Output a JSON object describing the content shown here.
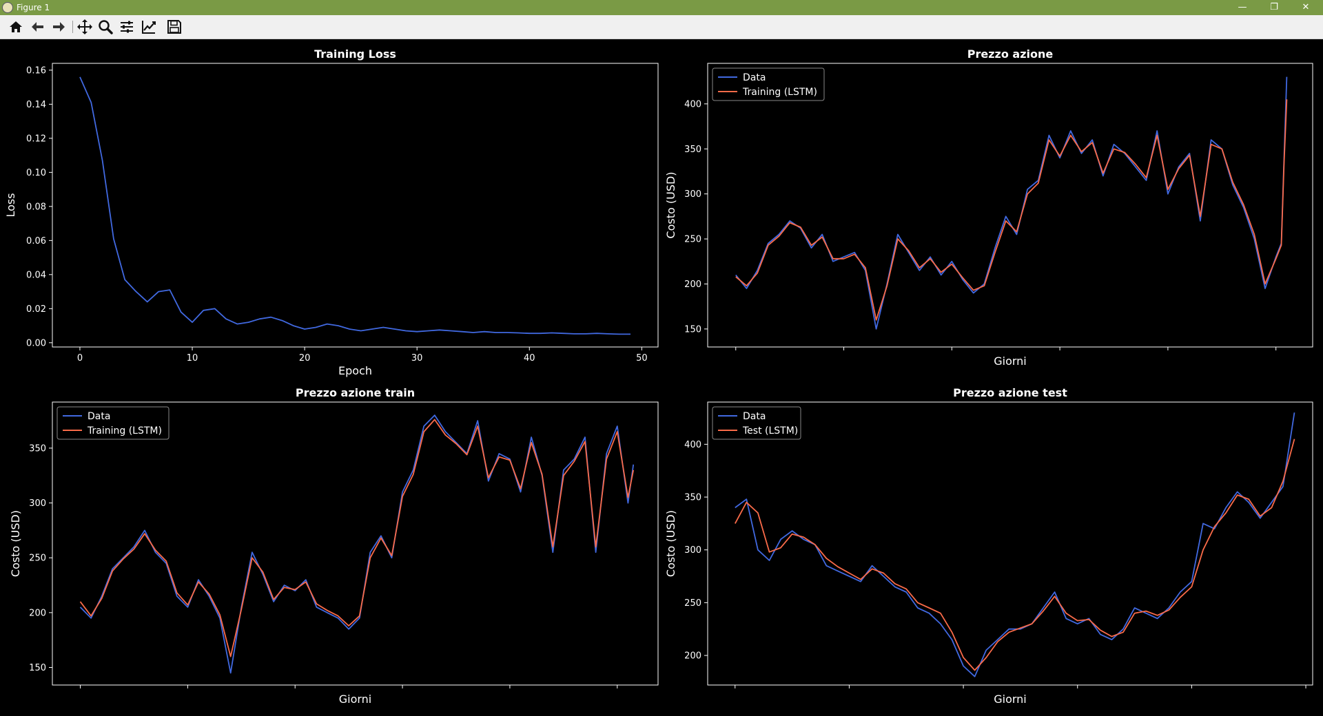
{
  "window": {
    "title": "Figure 1",
    "minimize": "—",
    "restore": "❐",
    "close": "✕"
  },
  "toolbar": {
    "icons": [
      "home-icon",
      "back-arrow-icon",
      "forward-arrow-icon",
      "pan-icon",
      "zoom-icon",
      "configure-subplots-icon",
      "edit-axes-icon",
      "save-icon"
    ]
  },
  "colors": {
    "background": "#000000",
    "data": "#4169e1",
    "model": "#fa6b49",
    "titlebar": "#7a9a45"
  },
  "chart_data": [
    {
      "type": "line",
      "title": "Training Loss",
      "xlabel": "Epoch",
      "ylabel": "Loss",
      "xlim": [
        -2.45,
        51.45
      ],
      "ylim": [
        -0.0025,
        0.164
      ],
      "xticks": [
        0,
        10,
        20,
        30,
        40,
        50
      ],
      "yticks": [
        0.0,
        0.02,
        0.04,
        0.06,
        0.08,
        0.1,
        0.12,
        0.14,
        0.16
      ],
      "ytick_labels": [
        "0.00",
        "0.02",
        "0.04",
        "0.06",
        "0.08",
        "0.10",
        "0.12",
        "0.14",
        "0.16"
      ],
      "series": [
        {
          "color": "#4169e1",
          "x": [
            0,
            1,
            2,
            3,
            4,
            5,
            6,
            7,
            8,
            9,
            10,
            11,
            12,
            13,
            14,
            15,
            16,
            17,
            18,
            19,
            20,
            21,
            22,
            23,
            24,
            25,
            26,
            27,
            28,
            29,
            30,
            31,
            32,
            33,
            34,
            35,
            36,
            37,
            38,
            39,
            40,
            41,
            42,
            43,
            44,
            45,
            46,
            47,
            48,
            49
          ],
          "y": [
            0.156,
            0.141,
            0.107,
            0.061,
            0.037,
            0.03,
            0.024,
            0.03,
            0.031,
            0.018,
            0.012,
            0.019,
            0.02,
            0.014,
            0.011,
            0.012,
            0.014,
            0.015,
            0.013,
            0.01,
            0.008,
            0.009,
            0.011,
            0.01,
            0.008,
            0.007,
            0.008,
            0.009,
            0.008,
            0.007,
            0.0065,
            0.007,
            0.0075,
            0.007,
            0.0065,
            0.006,
            0.0065,
            0.006,
            0.006,
            0.0058,
            0.0055,
            0.0055,
            0.0058,
            0.0055,
            0.0052,
            0.0052,
            0.0055,
            0.0052,
            0.005,
            0.005
          ]
        }
      ]
    },
    {
      "type": "line",
      "title": "Prezzo azione",
      "xlabel": "Giorni",
      "ylabel": "Costo (USD)",
      "xlim": [
        -52,
        1068
      ],
      "ylim": [
        130,
        445
      ],
      "xticks": [
        0,
        200,
        400,
        600,
        800,
        1000
      ],
      "yticks": [
        150,
        200,
        250,
        300,
        350,
        400
      ],
      "legend": {
        "position": "top-left",
        "entries": [
          "Data",
          "Training (LSTM)"
        ]
      },
      "x_days": [
        0,
        20,
        40,
        60,
        80,
        100,
        120,
        140,
        160,
        180,
        200,
        220,
        240,
        260,
        280,
        300,
        320,
        340,
        360,
        380,
        400,
        420,
        440,
        460,
        480,
        500,
        520,
        540,
        560,
        580,
        600,
        620,
        640,
        660,
        680,
        700,
        720,
        740,
        760,
        780,
        800,
        820,
        840,
        860,
        880,
        900,
        920,
        940,
        960,
        980,
        1000,
        1010,
        1015,
        1020
      ],
      "series": [
        {
          "name": "Data",
          "color": "#4169e1",
          "values": [
            210,
            195,
            215,
            245,
            255,
            270,
            262,
            240,
            255,
            225,
            230,
            235,
            215,
            150,
            200,
            255,
            235,
            215,
            230,
            210,
            225,
            205,
            190,
            200,
            240,
            275,
            255,
            305,
            315,
            365,
            340,
            370,
            345,
            360,
            320,
            355,
            345,
            330,
            315,
            370,
            300,
            330,
            345,
            270,
            360,
            350,
            310,
            285,
            250,
            195,
            230,
            245,
            340,
            430
          ]
        },
        {
          "name": "Training (LSTM)",
          "color": "#fa6b49",
          "values": [
            208,
            198,
            212,
            243,
            253,
            268,
            263,
            243,
            252,
            228,
            228,
            233,
            218,
            160,
            198,
            250,
            237,
            218,
            228,
            213,
            222,
            207,
            193,
            198,
            235,
            270,
            258,
            300,
            312,
            360,
            342,
            365,
            347,
            357,
            323,
            350,
            346,
            333,
            318,
            365,
            305,
            328,
            343,
            275,
            355,
            350,
            313,
            288,
            255,
            200,
            228,
            243,
            335,
            405
          ]
        }
      ]
    },
    {
      "type": "line",
      "title": "Prezzo azione train",
      "xlabel": "Giorni",
      "ylabel": "Costo (USD)",
      "xlim": [
        -26,
        538
      ],
      "ylim": [
        134,
        392
      ],
      "xticks": [
        0,
        100,
        200,
        300,
        400,
        500
      ],
      "yticks": [
        150,
        200,
        250,
        300,
        350
      ],
      "legend": {
        "position": "top-left",
        "entries": [
          "Data",
          "Training (LSTM)"
        ]
      },
      "x_days": [
        0,
        10,
        20,
        30,
        40,
        50,
        60,
        70,
        80,
        90,
        100,
        110,
        120,
        130,
        140,
        150,
        160,
        170,
        180,
        190,
        200,
        210,
        220,
        230,
        240,
        250,
        260,
        270,
        280,
        290,
        300,
        310,
        320,
        330,
        340,
        350,
        360,
        370,
        380,
        390,
        400,
        410,
        420,
        430,
        440,
        450,
        460,
        470,
        480,
        490,
        500,
        510,
        515
      ],
      "series": [
        {
          "name": "Data",
          "color": "#4169e1",
          "values": [
            205,
            195,
            215,
            240,
            250,
            260,
            275,
            255,
            245,
            215,
            205,
            230,
            215,
            195,
            145,
            205,
            255,
            235,
            210,
            225,
            220,
            230,
            205,
            200,
            195,
            185,
            195,
            255,
            270,
            250,
            310,
            330,
            370,
            380,
            365,
            355,
            345,
            375,
            320,
            345,
            340,
            310,
            360,
            325,
            255,
            330,
            340,
            360,
            255,
            345,
            370,
            300,
            335
          ]
        },
        {
          "name": "Training (LSTM)",
          "color": "#fa6b49",
          "values": [
            210,
            197,
            213,
            238,
            249,
            258,
            272,
            257,
            247,
            218,
            207,
            228,
            217,
            198,
            160,
            203,
            250,
            237,
            212,
            223,
            221,
            228,
            208,
            202,
            197,
            188,
            197,
            250,
            268,
            252,
            306,
            326,
            365,
            376,
            362,
            354,
            344,
            370,
            323,
            342,
            339,
            313,
            355,
            326,
            260,
            325,
            338,
            356,
            260,
            340,
            365,
            305,
            330
          ]
        }
      ]
    },
    {
      "type": "line",
      "title": "Prezzo azione test",
      "xlabel": "Giorni",
      "ylabel": "Costo (USD)",
      "xlim": [
        -12,
        253
      ],
      "ylim": [
        172,
        440
      ],
      "xticks": [
        0,
        50,
        100,
        150,
        200,
        250
      ],
      "yticks": [
        200,
        250,
        300,
        350,
        400
      ],
      "legend": {
        "position": "top-left",
        "entries": [
          "Data",
          "Test (LSTM)"
        ]
      },
      "x_days": [
        0,
        5,
        10,
        15,
        20,
        25,
        30,
        35,
        40,
        45,
        50,
        55,
        60,
        65,
        70,
        75,
        80,
        85,
        90,
        95,
        100,
        105,
        110,
        115,
        120,
        125,
        130,
        135,
        140,
        145,
        150,
        155,
        160,
        165,
        170,
        175,
        180,
        185,
        190,
        195,
        200,
        205,
        210,
        215,
        220,
        225,
        230,
        235,
        240,
        245
      ],
      "series": [
        {
          "name": "Data",
          "color": "#4169e1",
          "values": [
            340,
            348,
            300,
            290,
            310,
            318,
            310,
            305,
            285,
            280,
            275,
            270,
            285,
            275,
            265,
            260,
            245,
            240,
            230,
            215,
            190,
            180,
            205,
            215,
            225,
            225,
            230,
            245,
            260,
            235,
            230,
            235,
            220,
            215,
            225,
            245,
            240,
            235,
            245,
            260,
            270,
            325,
            320,
            340,
            355,
            345,
            330,
            345,
            360,
            430
          ]
        },
        {
          "name": "Test (LSTM)",
          "color": "#fa6b49",
          "values": [
            325,
            345,
            335,
            298,
            302,
            315,
            312,
            305,
            292,
            284,
            278,
            272,
            282,
            278,
            268,
            263,
            250,
            245,
            240,
            222,
            198,
            186,
            198,
            213,
            222,
            226,
            230,
            242,
            256,
            240,
            233,
            234,
            224,
            218,
            222,
            240,
            242,
            238,
            243,
            255,
            265,
            300,
            322,
            335,
            352,
            348,
            332,
            340,
            365,
            405
          ]
        }
      ]
    }
  ]
}
